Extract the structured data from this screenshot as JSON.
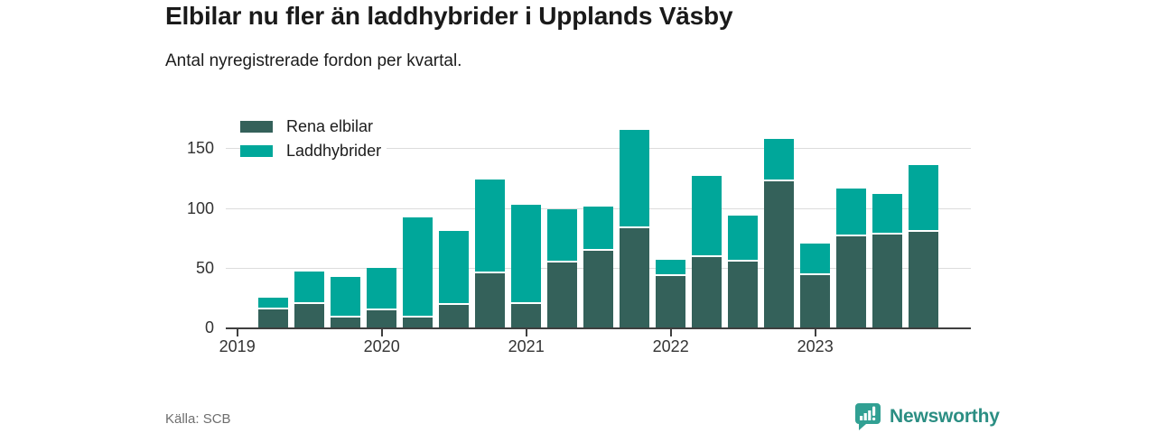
{
  "header": {
    "title": "Elbilar nu fler än laddhybrider i Upplands Väsby",
    "subtitle": "Antal nyregistrerade fordon per kvartal."
  },
  "legend": {
    "items": [
      {
        "label": "Rena elbilar",
        "color": "#34615a"
      },
      {
        "label": "Laddhybrider",
        "color": "#00a79a"
      }
    ]
  },
  "chart_data": {
    "type": "bar",
    "stacked": true,
    "title": "Elbilar nu fler än laddhybrider i Upplands Väsby",
    "subtitle": "Antal nyregistrerade fordon per kvartal.",
    "x": [
      "2019 Q1",
      "2019 Q2",
      "2019 Q3",
      "2019 Q4",
      "2020 Q1",
      "2020 Q2",
      "2020 Q3",
      "2020 Q4",
      "2021 Q1",
      "2021 Q2",
      "2021 Q3",
      "2021 Q4",
      "2022 Q1",
      "2022 Q2",
      "2022 Q3",
      "2022 Q4",
      "2023 Q1",
      "2023 Q2",
      "2023 Q3"
    ],
    "series": [
      {
        "name": "Rena elbilar",
        "color": "#34615a",
        "values": [
          15,
          20,
          8,
          14,
          8,
          19,
          45,
          20,
          54,
          64,
          83,
          43,
          59,
          55,
          122,
          44,
          76,
          78,
          80
        ]
      },
      {
        "name": "Laddhybrider",
        "color": "#00a79a",
        "values": [
          10,
          27,
          34,
          36,
          84,
          62,
          79,
          83,
          45,
          37,
          82,
          14,
          68,
          39,
          36,
          26,
          40,
          34,
          56
        ]
      }
    ],
    "totals": [
      25,
      47,
      42,
      50,
      92,
      81,
      124,
      103,
      99,
      101,
      165,
      57,
      127,
      94,
      158,
      70,
      116,
      112,
      136
    ],
    "ylabel": "",
    "xlabel": "",
    "yticks": [
      0,
      50,
      100,
      150
    ],
    "ylim": [
      0,
      172
    ],
    "xticks": [
      "2019",
      "2020",
      "2021",
      "2022",
      "2023"
    ],
    "grid": true,
    "legend_position": "top-left-inside"
  },
  "footer": {
    "source": "Källa: SCB",
    "brand": "Newsworthy",
    "brand_color": "#2b8e83",
    "brand_icon_color": "#31a093"
  }
}
